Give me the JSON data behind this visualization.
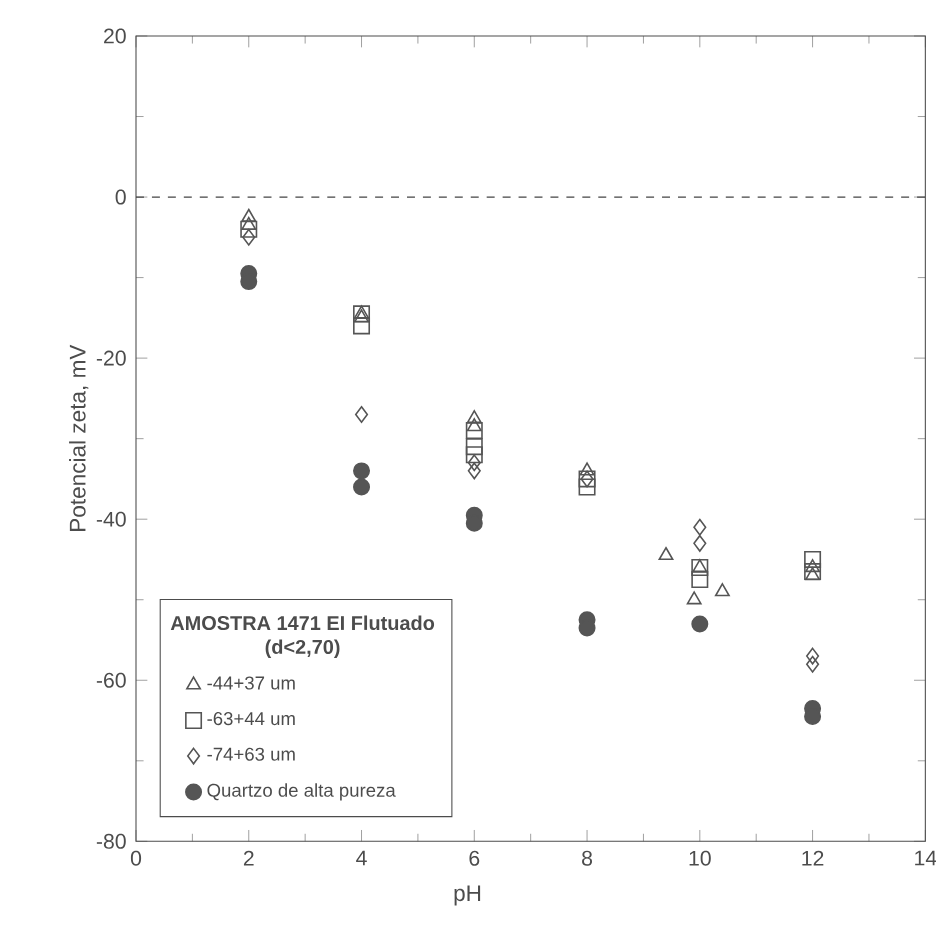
{
  "chart_data": {
    "type": "scatter",
    "xlabel": "pH",
    "ylabel": "Potencial zeta, mV",
    "legend_title": "AMOSTRA 1471 EI Flutuado (d<2,70)",
    "legend": "bottom left",
    "xlim": [
      0,
      14
    ],
    "ylim": [
      -80,
      20
    ],
    "xticks": [
      0,
      2,
      4,
      6,
      8,
      10,
      12,
      14
    ],
    "yticks": [
      -80,
      -60,
      -40,
      -20,
      0,
      20
    ],
    "grid": false,
    "ref_lines": [
      {
        "axis": "y",
        "value": 0,
        "line_style": "dashed",
        "color": "#444444"
      }
    ],
    "series": [
      {
        "name": "-44+37 um",
        "marker": "triangle",
        "color": "#555555",
        "x": [
          2,
          2,
          4,
          4,
          6,
          6,
          8,
          9.4,
          9.9,
          10,
          10.4,
          12,
          12
        ],
        "values": [
          -2.5,
          -3.5,
          -15,
          -14.5,
          -27.5,
          -28.5,
          -34,
          -44.5,
          -50,
          -46,
          -49,
          -46,
          -47
        ]
      },
      {
        "name": "-63+44 um",
        "marker": "square",
        "color": "#555555",
        "x": [
          2,
          4,
          4,
          6,
          6,
          6,
          8,
          8,
          10,
          10,
          12,
          12
        ],
        "values": [
          -4,
          -14.5,
          -16,
          -29,
          -31,
          -32,
          -35,
          -36,
          -46,
          -47.5,
          -45,
          -46.5
        ]
      },
      {
        "name": "-74+63 um",
        "marker": "diamond",
        "color": "#555555",
        "x": [
          2,
          4,
          6,
          6,
          8,
          10,
          10,
          12,
          12
        ],
        "values": [
          -5,
          -27,
          -33,
          -34,
          -35,
          -41,
          -43,
          -57,
          -58
        ]
      },
      {
        "name": "Quartzo de alta pureza",
        "marker": "circle",
        "color": "#555555",
        "x": [
          2,
          2,
          4,
          4,
          6,
          6,
          8,
          8,
          10,
          12,
          12
        ],
        "values": [
          -9.5,
          -10.5,
          -34,
          -36,
          -39.5,
          -40.5,
          -52.5,
          -53.5,
          -53,
          -63.5,
          -64.5
        ]
      }
    ]
  }
}
